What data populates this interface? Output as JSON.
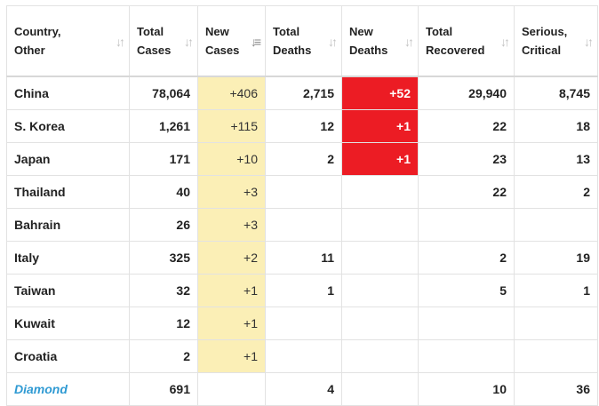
{
  "table": {
    "headers": [
      {
        "label": "Country,\nOther",
        "sort_icon": "sort-arrows-icon"
      },
      {
        "label": "Total\nCases",
        "sort_icon": "sort-arrows-icon"
      },
      {
        "label": "New\nCases",
        "sort_icon": "sort-descending-icon"
      },
      {
        "label": "Total\nDeaths",
        "sort_icon": "sort-arrows-icon"
      },
      {
        "label": "New\nDeaths",
        "sort_icon": "sort-arrows-icon"
      },
      {
        "label": "Total\nRecovered",
        "sort_icon": "sort-arrows-icon"
      },
      {
        "label": "Serious,\nCritical",
        "sort_icon": "sort-arrows-icon"
      }
    ],
    "rows": [
      {
        "country": "China",
        "total_cases": "78,064",
        "new_cases": "+406",
        "total_deaths": "2,715",
        "new_deaths": "+52",
        "total_recovered": "29,940",
        "serious_critical": "8,745"
      },
      {
        "country": "S. Korea",
        "total_cases": "1,261",
        "new_cases": "+115",
        "total_deaths": "12",
        "new_deaths": "+1",
        "total_recovered": "22",
        "serious_critical": "18"
      },
      {
        "country": "Japan",
        "total_cases": "171",
        "new_cases": "+10",
        "total_deaths": "2",
        "new_deaths": "+1",
        "total_recovered": "23",
        "serious_critical": "13"
      },
      {
        "country": "Thailand",
        "total_cases": "40",
        "new_cases": "+3",
        "total_deaths": "",
        "new_deaths": "",
        "total_recovered": "22",
        "serious_critical": "2"
      },
      {
        "country": "Bahrain",
        "total_cases": "26",
        "new_cases": "+3",
        "total_deaths": "",
        "new_deaths": "",
        "total_recovered": "",
        "serious_critical": ""
      },
      {
        "country": "Italy",
        "total_cases": "325",
        "new_cases": "+2",
        "total_deaths": "11",
        "new_deaths": "",
        "total_recovered": "2",
        "serious_critical": "19"
      },
      {
        "country": "Taiwan",
        "total_cases": "32",
        "new_cases": "+1",
        "total_deaths": "1",
        "new_deaths": "",
        "total_recovered": "5",
        "serious_critical": "1"
      },
      {
        "country": "Kuwait",
        "total_cases": "12",
        "new_cases": "+1",
        "total_deaths": "",
        "new_deaths": "",
        "total_recovered": "",
        "serious_critical": ""
      },
      {
        "country": "Croatia",
        "total_cases": "2",
        "new_cases": "+1",
        "total_deaths": "",
        "new_deaths": "",
        "total_recovered": "",
        "serious_critical": ""
      },
      {
        "country": "Diamond",
        "total_cases": "691",
        "new_cases": "",
        "total_deaths": "4",
        "new_deaths": "",
        "total_recovered": "10",
        "serious_critical": "36",
        "country_is_link": true
      }
    ]
  },
  "colors": {
    "new_cases_bg": "#fbefb6",
    "new_deaths_highlight": "#ec1c24",
    "link": "#2f9ad3"
  }
}
